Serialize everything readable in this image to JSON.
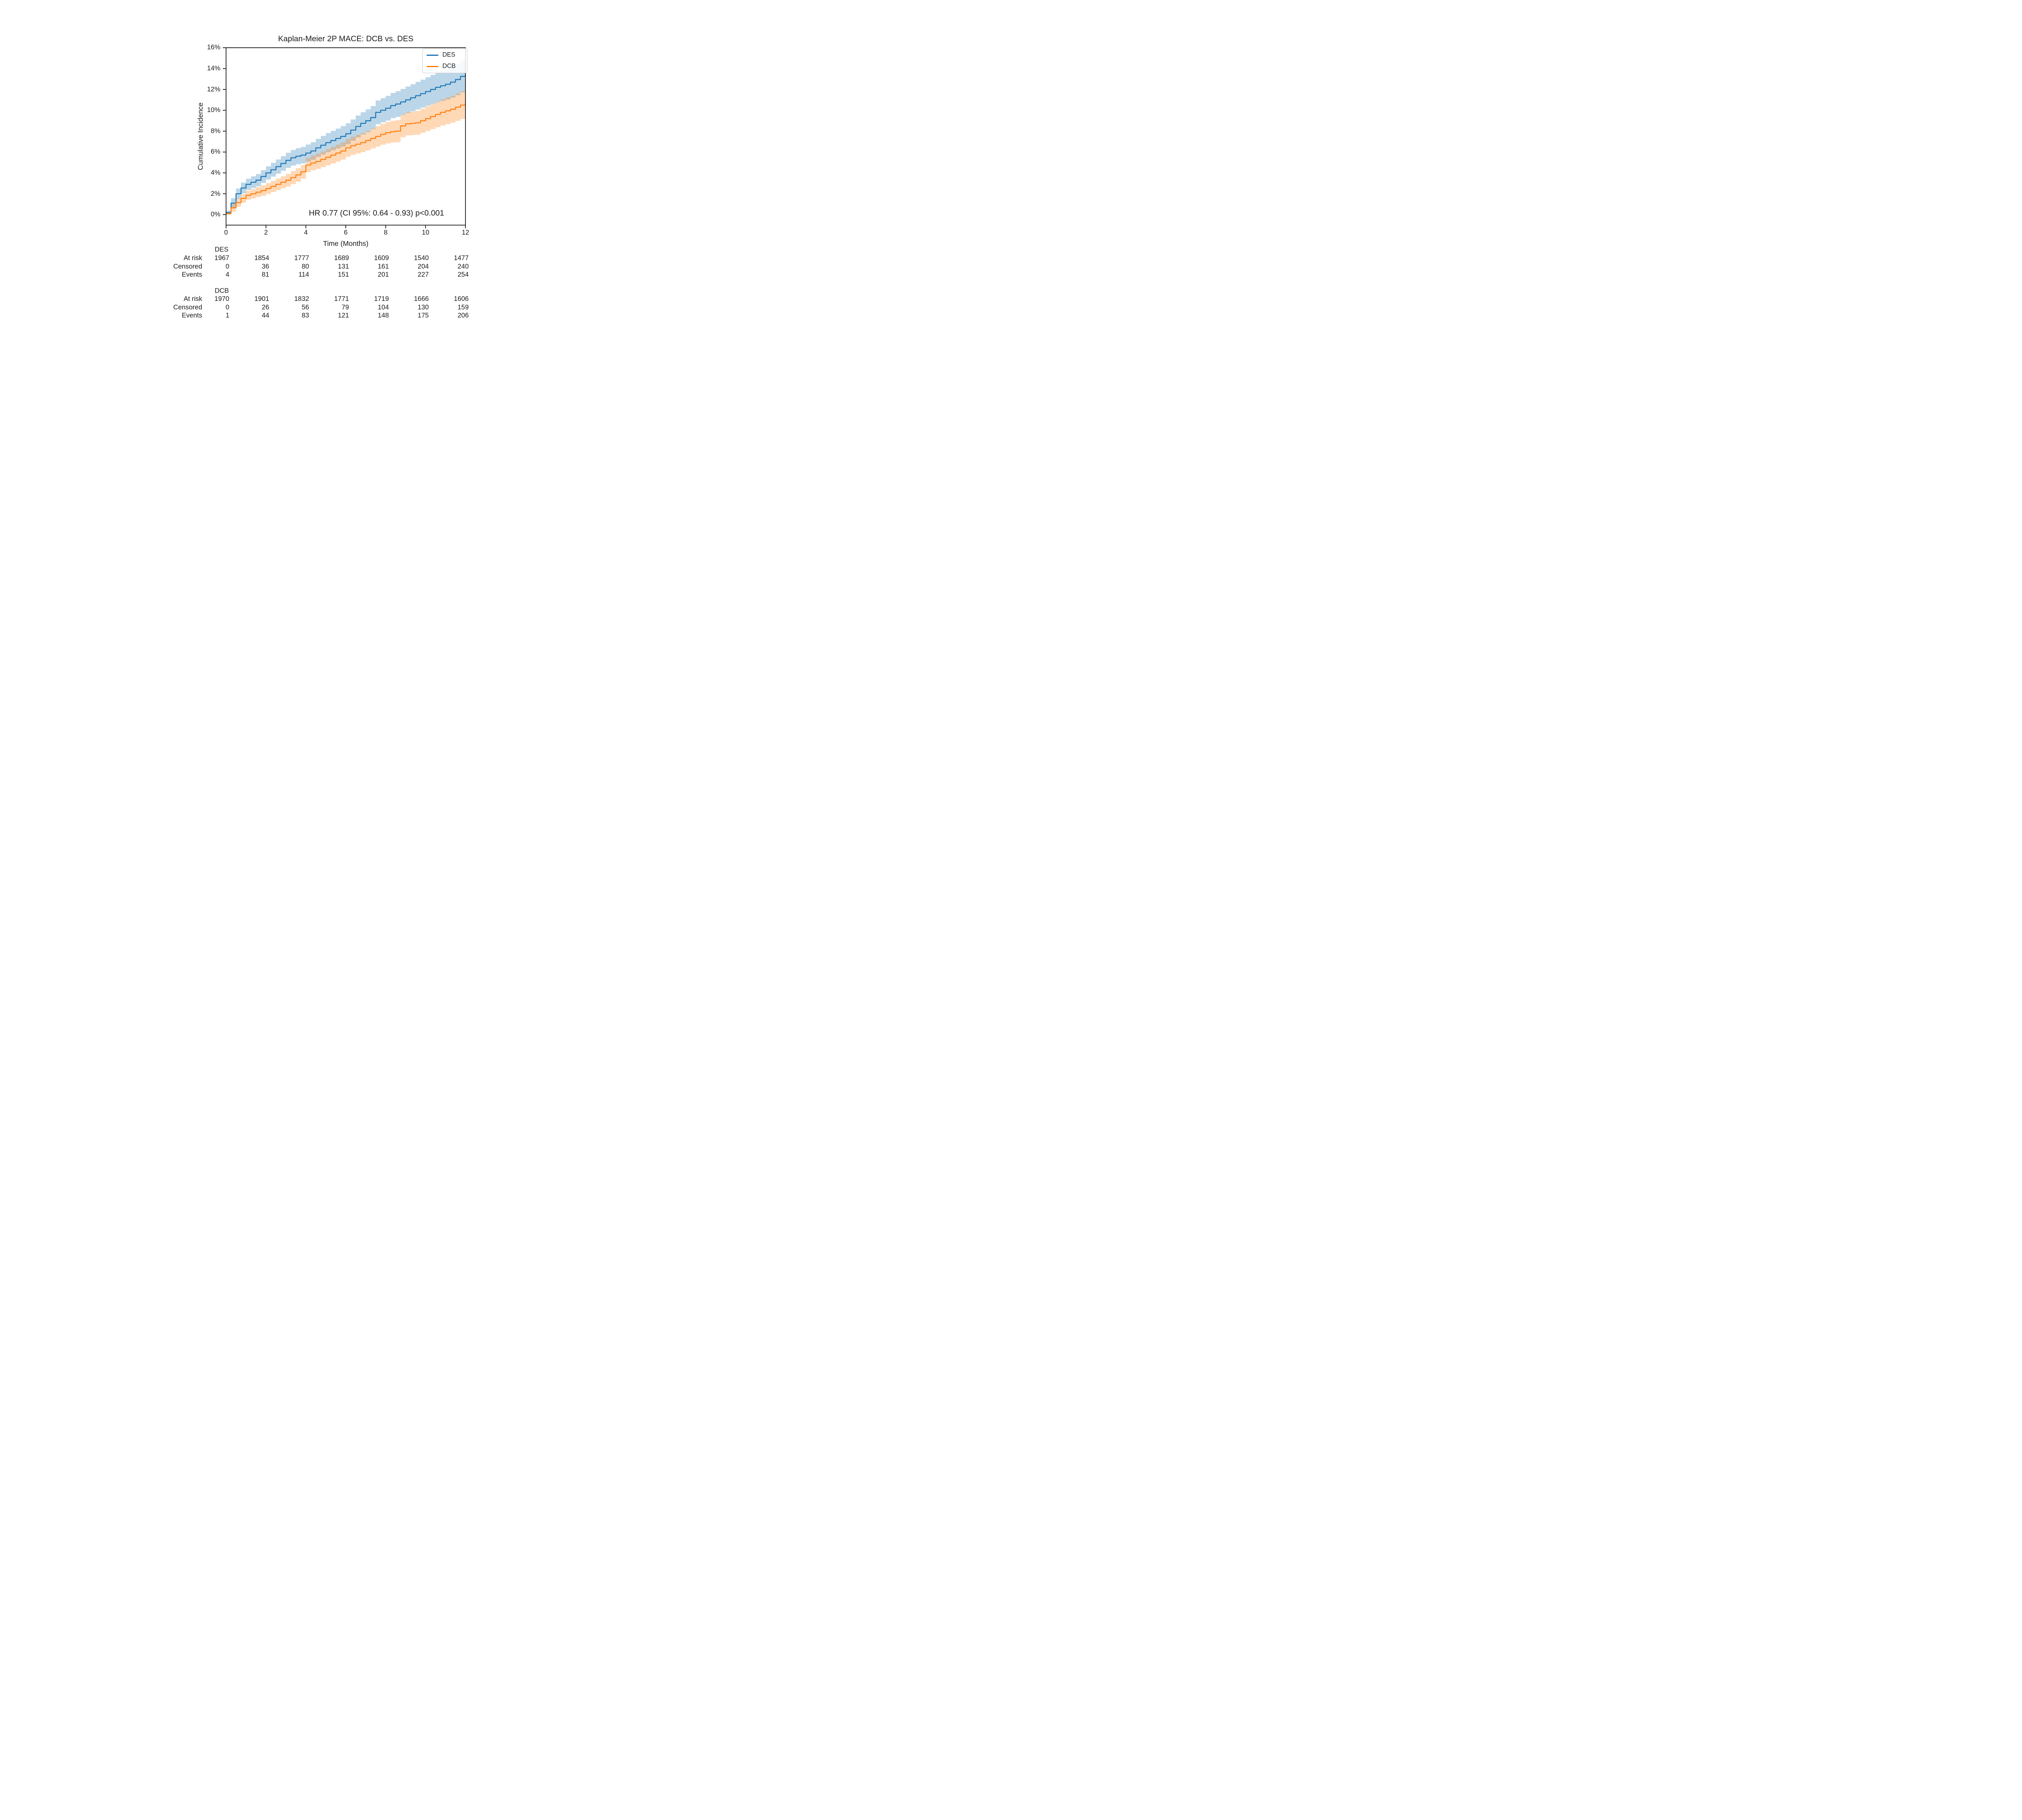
{
  "figure": {
    "title": "Kaplan-Meier 2P MACE: DCB vs. DES",
    "x_axis_label": "Time (Months)",
    "y_axis_label": "Cumulative Incidence",
    "annotation": "HR 0.77 (CI 95%: 0.64 - 0.93) p<0.001"
  },
  "chart_data": {
    "type": "line",
    "subtype": "kaplan-meier-step-with-ci-bands",
    "title": "Kaplan-Meier 2P MACE: DCB vs. DES",
    "xlabel": "Time (Months)",
    "ylabel": "Cumulative Incidence",
    "xlim": [
      0,
      12
    ],
    "ylim_percent": [
      -1,
      16
    ],
    "x_ticks": [
      0,
      2,
      4,
      6,
      8,
      10,
      12
    ],
    "y_ticks_percent": [
      0,
      2,
      4,
      6,
      8,
      10,
      12,
      14,
      16
    ],
    "y_tick_suffix": "%",
    "grid": false,
    "legend_position": "upper right",
    "annotation": "HR 0.77 (CI 95%: 0.64 - 0.93) p<0.001",
    "x": [
      0,
      0.25,
      0.5,
      0.75,
      1,
      1.25,
      1.5,
      1.75,
      2,
      2.25,
      2.5,
      2.75,
      3,
      3.25,
      3.5,
      3.75,
      4,
      4.25,
      4.5,
      4.75,
      5,
      5.25,
      5.5,
      5.75,
      6,
      6.25,
      6.5,
      6.75,
      7,
      7.25,
      7.5,
      7.75,
      8,
      8.25,
      8.5,
      8.75,
      9,
      9.25,
      9.5,
      9.75,
      10,
      10.25,
      10.5,
      10.75,
      11,
      11.25,
      11.5,
      11.75,
      12
    ],
    "series": [
      {
        "name": "DES",
        "color": "#1f77b4",
        "ci_alpha": 0.3,
        "values_percent": [
          0.2,
          1.1,
          2.0,
          2.55,
          2.9,
          3.1,
          3.3,
          3.65,
          4.0,
          4.3,
          4.6,
          4.9,
          5.2,
          5.45,
          5.6,
          5.7,
          5.9,
          6.1,
          6.4,
          6.65,
          6.9,
          7.1,
          7.3,
          7.5,
          7.75,
          8.1,
          8.45,
          8.75,
          9.0,
          9.3,
          9.8,
          10.0,
          10.2,
          10.45,
          10.6,
          10.8,
          11.0,
          11.2,
          11.4,
          11.6,
          11.8,
          12.0,
          12.2,
          12.35,
          12.5,
          12.7,
          12.95,
          13.25,
          13.75
        ],
        "ci_upper_percent": [
          0.38,
          1.57,
          2.5,
          3.07,
          3.44,
          3.67,
          3.89,
          4.26,
          4.63,
          4.96,
          5.28,
          5.6,
          5.93,
          6.2,
          6.37,
          6.49,
          6.72,
          6.94,
          7.26,
          7.54,
          7.81,
          8.03,
          8.25,
          8.48,
          8.75,
          9.12,
          9.5,
          9.82,
          10.09,
          10.41,
          10.94,
          11.16,
          11.38,
          11.66,
          11.83,
          12.05,
          12.28,
          12.5,
          12.72,
          12.94,
          13.17,
          13.39,
          13.61,
          13.79,
          13.96,
          14.18,
          14.45,
          14.78,
          15.3
        ],
        "ci_lower_percent": [
          0.02,
          0.63,
          1.5,
          2.03,
          2.36,
          2.54,
          2.71,
          3.04,
          3.37,
          3.64,
          3.92,
          4.2,
          4.48,
          4.7,
          4.83,
          4.91,
          5.08,
          5.26,
          5.54,
          5.76,
          5.99,
          6.17,
          6.35,
          6.52,
          6.75,
          7.08,
          7.4,
          7.68,
          7.91,
          8.19,
          8.66,
          8.84,
          9.02,
          9.24,
          9.37,
          9.55,
          9.73,
          9.9,
          10.08,
          10.26,
          10.43,
          10.61,
          10.79,
          10.91,
          11.04,
          11.22,
          11.45,
          11.72,
          12.2
        ]
      },
      {
        "name": "DCB",
        "color": "#ff7f0e",
        "ci_alpha": 0.3,
        "values_percent": [
          0.1,
          0.65,
          1.15,
          1.55,
          1.85,
          2.0,
          2.15,
          2.3,
          2.5,
          2.7,
          2.9,
          3.1,
          3.3,
          3.55,
          3.8,
          4.1,
          4.75,
          4.95,
          5.1,
          5.3,
          5.5,
          5.7,
          5.9,
          6.1,
          6.4,
          6.6,
          6.75,
          6.9,
          7.1,
          7.3,
          7.5,
          7.7,
          7.85,
          7.95,
          8.0,
          8.5,
          8.7,
          8.75,
          8.8,
          9.0,
          9.2,
          9.4,
          9.6,
          9.8,
          9.95,
          10.1,
          10.3,
          10.5,
          10.85
        ],
        "ci_upper_percent": [
          0.19,
          1.02,
          1.54,
          1.96,
          2.28,
          2.45,
          2.63,
          2.8,
          3.02,
          3.24,
          3.46,
          3.68,
          3.9,
          4.17,
          4.44,
          4.76,
          5.43,
          5.65,
          5.83,
          6.05,
          6.27,
          6.49,
          6.71,
          6.93,
          7.25,
          7.47,
          7.64,
          7.81,
          8.03,
          8.25,
          8.48,
          8.7,
          8.87,
          8.99,
          9.06,
          9.58,
          9.8,
          9.87,
          9.94,
          10.16,
          10.38,
          10.6,
          10.83,
          11.05,
          11.22,
          11.39,
          11.61,
          11.83,
          12.2
        ],
        "ci_lower_percent": [
          0.01,
          0.28,
          0.76,
          1.14,
          1.42,
          1.55,
          1.68,
          1.8,
          1.98,
          2.16,
          2.34,
          2.52,
          2.7,
          2.93,
          3.16,
          3.44,
          4.07,
          4.25,
          4.38,
          4.55,
          4.73,
          4.91,
          5.09,
          5.27,
          5.55,
          5.73,
          5.86,
          5.99,
          6.17,
          6.35,
          6.53,
          6.7,
          6.83,
          6.91,
          6.94,
          7.42,
          7.6,
          7.63,
          7.66,
          7.84,
          8.02,
          8.2,
          8.38,
          8.55,
          8.68,
          8.81,
          8.99,
          9.17,
          9.5
        ]
      }
    ]
  },
  "legend": {
    "entries": [
      "DES",
      "DCB"
    ]
  },
  "risk_tables": [
    {
      "group": "DES",
      "time_points": [
        0,
        2,
        4,
        6,
        8,
        10,
        12
      ],
      "rows": [
        {
          "label": "At risk",
          "values": [
            "1967",
            "1854",
            "1777",
            "1689",
            "1609",
            "1540",
            "1477"
          ]
        },
        {
          "label": "Censored",
          "values": [
            "0",
            "36",
            "80",
            "131",
            "161",
            "204",
            "240"
          ]
        },
        {
          "label": "Events",
          "values": [
            "4",
            "81",
            "114",
            "151",
            "201",
            "227",
            "254"
          ]
        }
      ]
    },
    {
      "group": "DCB",
      "time_points": [
        0,
        2,
        4,
        6,
        8,
        10,
        12
      ],
      "rows": [
        {
          "label": "At risk",
          "values": [
            "1970",
            "1901",
            "1832",
            "1771",
            "1719",
            "1666",
            "1606"
          ]
        },
        {
          "label": "Censored",
          "values": [
            "0",
            "26",
            "56",
            "79",
            "104",
            "130",
            "159"
          ]
        },
        {
          "label": "Events",
          "values": [
            "1",
            "44",
            "83",
            "121",
            "148",
            "175",
            "206"
          ]
        }
      ]
    }
  ],
  "colors": {
    "des": "#1f77b4",
    "dcb": "#ff7f0e",
    "axis": "#1a1a1a",
    "text": "#1a1a1a",
    "legend_border": "#cccccc"
  }
}
